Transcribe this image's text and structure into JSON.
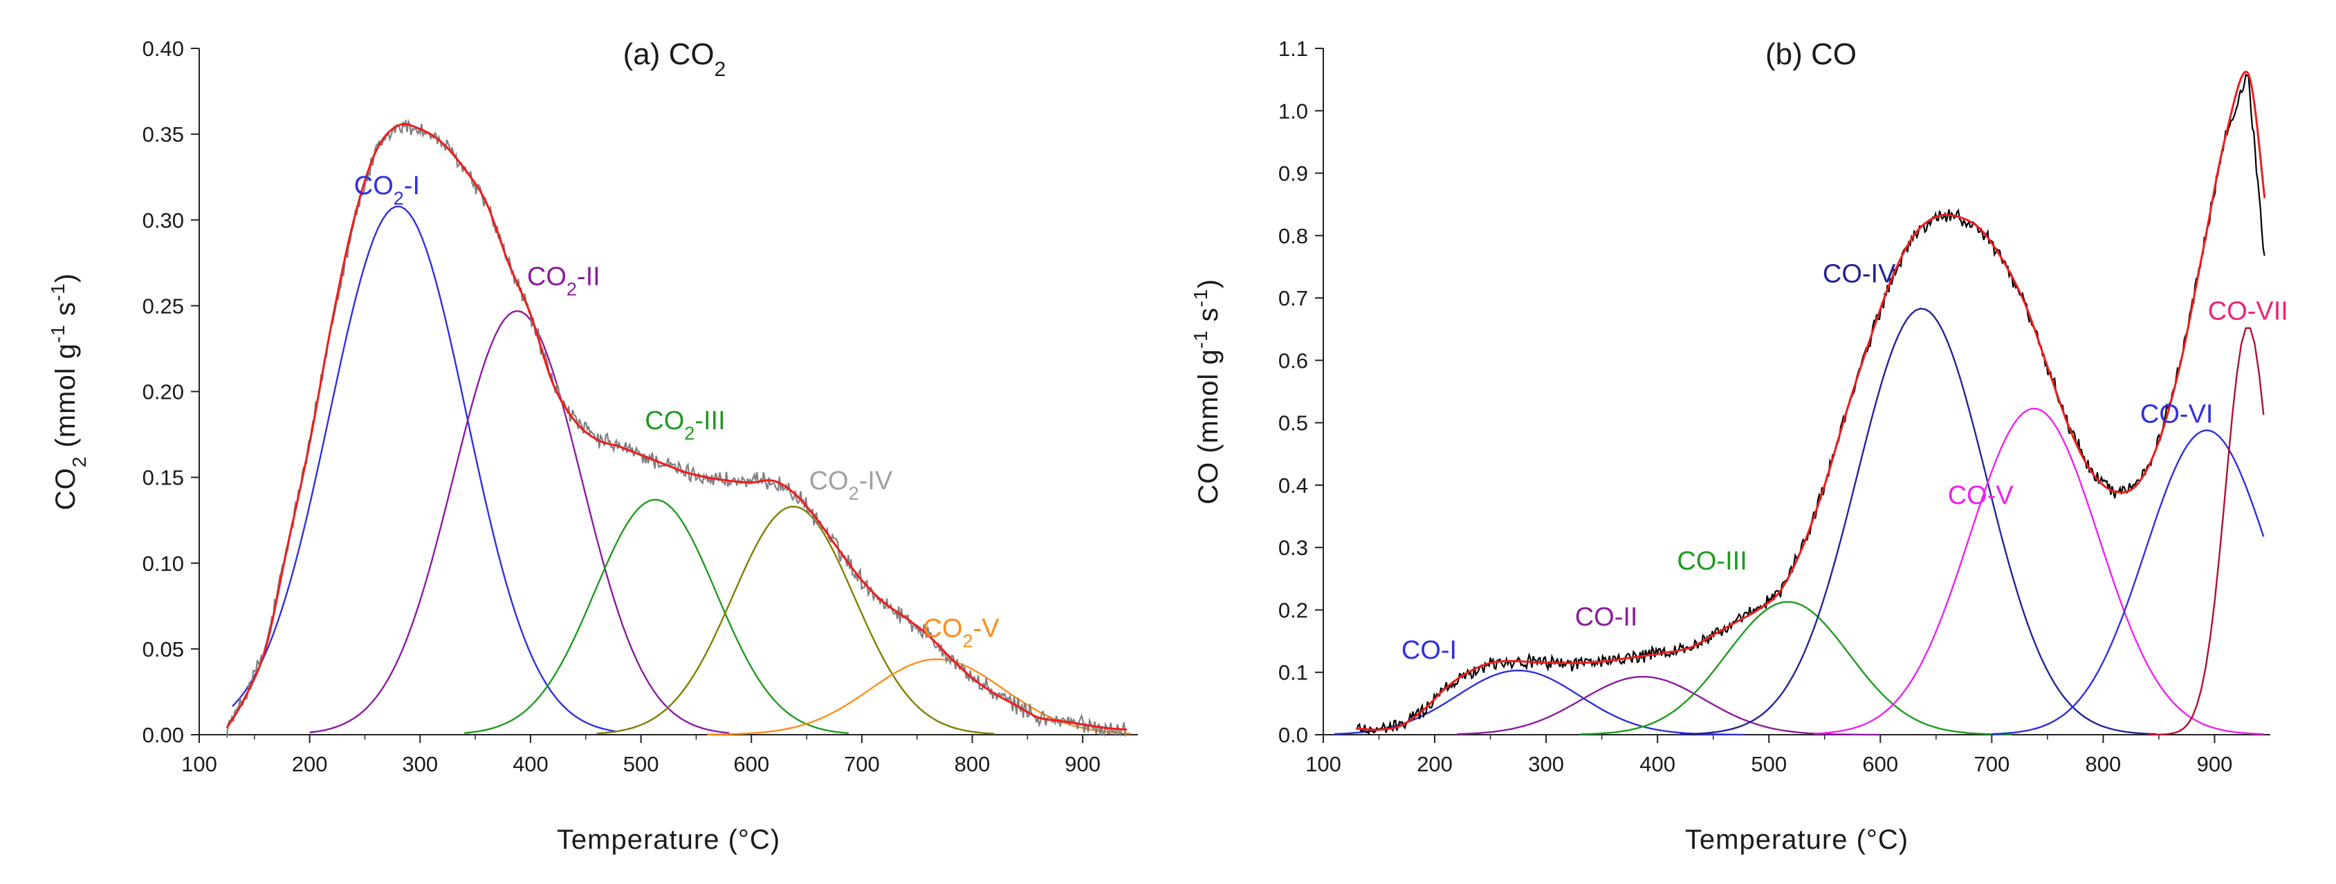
{
  "chart_data": [
    {
      "type": "line",
      "panel": "a",
      "title": "(a) CO",
      "title_sub": "2",
      "xlabel": "Temperature (°C)",
      "ylabel_parts": [
        {
          "t": "CO"
        },
        {
          "t": "2",
          "s": "sub"
        },
        {
          "t": " (mmol g"
        },
        {
          "t": "-1",
          "s": "sup"
        },
        {
          "t": " s"
        },
        {
          "t": "-1",
          "s": "sup"
        },
        {
          "t": ")"
        }
      ],
      "xlim": [
        100,
        950
      ],
      "ylim": [
        0,
        0.4
      ],
      "xticks": [
        100,
        200,
        300,
        400,
        500,
        600,
        700,
        800,
        900
      ],
      "yticks": [
        0.0,
        0.05,
        0.1,
        0.15,
        0.2,
        0.25,
        0.3,
        0.35,
        0.4
      ],
      "ytick_decimals": 2,
      "noise": 0.004,
      "experimental": {
        "name": "Experimental",
        "color": "#7f7f7f",
        "x": [
          125,
          140,
          160,
          180,
          200,
          220,
          240,
          260,
          280,
          300,
          320,
          340,
          360,
          380,
          400,
          420,
          440,
          460,
          480,
          500,
          520,
          540,
          560,
          580,
          600,
          620,
          640,
          660,
          680,
          700,
          720,
          740,
          760,
          780,
          800,
          820,
          840,
          860,
          880,
          900,
          920,
          940
        ],
        "y": [
          0.004,
          0.02,
          0.05,
          0.11,
          0.17,
          0.24,
          0.3,
          0.34,
          0.355,
          0.353,
          0.345,
          0.33,
          0.31,
          0.275,
          0.245,
          0.205,
          0.183,
          0.172,
          0.168,
          0.163,
          0.158,
          0.153,
          0.15,
          0.148,
          0.147,
          0.148,
          0.14,
          0.125,
          0.107,
          0.09,
          0.077,
          0.068,
          0.058,
          0.045,
          0.033,
          0.024,
          0.017,
          0.01,
          0.008,
          0.006,
          0.004,
          0.003
        ]
      },
      "fit": {
        "name": "Cumulative fit",
        "color": "#ee1c1c",
        "x": [
          125,
          140,
          160,
          180,
          200,
          220,
          240,
          260,
          280,
          300,
          320,
          340,
          360,
          380,
          400,
          420,
          440,
          460,
          480,
          500,
          520,
          540,
          560,
          580,
          600,
          620,
          640,
          660,
          680,
          700,
          720,
          740,
          760,
          780,
          800,
          820,
          840,
          860,
          880,
          900,
          920,
          940
        ],
        "y": [
          0.004,
          0.02,
          0.05,
          0.11,
          0.17,
          0.24,
          0.3,
          0.34,
          0.355,
          0.353,
          0.345,
          0.33,
          0.31,
          0.275,
          0.245,
          0.205,
          0.183,
          0.172,
          0.168,
          0.163,
          0.158,
          0.153,
          0.15,
          0.148,
          0.147,
          0.148,
          0.14,
          0.125,
          0.107,
          0.09,
          0.077,
          0.068,
          0.058,
          0.045,
          0.033,
          0.024,
          0.017,
          0.01,
          0.008,
          0.006,
          0.004,
          0.003
        ]
      },
      "peaks": [
        {
          "name": "CO2-I",
          "label": "CO",
          "sub": "2",
          "suffix": "-I",
          "color": "#2f2fe0",
          "center": 280,
          "height": 0.308,
          "sigma": 62,
          "x_from": 130,
          "x_to": 480,
          "label_x": 270,
          "label_y": 0.315
        },
        {
          "name": "CO2-II",
          "label": "CO",
          "sub": "2",
          "suffix": "-II",
          "color": "#8b1c9e",
          "center": 388,
          "height": 0.247,
          "sigma": 58,
          "x_from": 200,
          "x_to": 580,
          "label_x": 430,
          "label_y": 0.262
        },
        {
          "name": "CO2-III",
          "label": "CO",
          "sub": "2",
          "suffix": "-III",
          "color": "#1f9a1f",
          "center": 513,
          "height": 0.137,
          "sigma": 55,
          "x_from": 340,
          "x_to": 690,
          "label_x": 540,
          "label_y": 0.178
        },
        {
          "name": "CO2-IV",
          "label": "CO",
          "sub": "2",
          "suffix": "-IV",
          "color": "#7f7f00",
          "center": 638,
          "height": 0.133,
          "sigma": 55,
          "x_from": 460,
          "x_to": 820,
          "label_x": 690,
          "label_y": 0.143
        },
        {
          "name": "CO2-V",
          "label": "CO",
          "sub": "2",
          "suffix": "-V",
          "color": "#ff8c1a",
          "center": 768,
          "height": 0.044,
          "sigma": 60,
          "x_from": 560,
          "x_to": 945,
          "label_x": 790,
          "label_y": 0.057
        }
      ]
    },
    {
      "type": "line",
      "panel": "b",
      "title": "(b) CO",
      "title_sub": "",
      "xlabel": "Temperature (°C)",
      "ylabel_parts": [
        {
          "t": "CO (mmol g"
        },
        {
          "t": "-1",
          "s": "sup"
        },
        {
          "t": " s"
        },
        {
          "t": "-1",
          "s": "sup"
        },
        {
          "t": ")"
        }
      ],
      "xlim": [
        100,
        950
      ],
      "ylim": [
        0,
        1.1
      ],
      "xticks": [
        100,
        200,
        300,
        400,
        500,
        600,
        700,
        800,
        900
      ],
      "yticks": [
        0.0,
        0.1,
        0.2,
        0.3,
        0.4,
        0.5,
        0.6,
        0.7,
        0.8,
        0.9,
        1.0,
        1.1
      ],
      "ytick_decimals": 1,
      "noise": 0.009,
      "experimental": {
        "name": "Experimental",
        "color": "#000000",
        "x": [
          130,
          150,
          170,
          190,
          210,
          230,
          250,
          270,
          290,
          310,
          330,
          350,
          370,
          390,
          410,
          430,
          450,
          470,
          490,
          510,
          530,
          550,
          570,
          590,
          610,
          630,
          650,
          670,
          690,
          710,
          730,
          750,
          770,
          790,
          810,
          830,
          850,
          870,
          890,
          910,
          930,
          945
        ],
        "y": [
          0.01,
          0.008,
          0.015,
          0.04,
          0.075,
          0.1,
          0.115,
          0.118,
          0.116,
          0.115,
          0.115,
          0.117,
          0.122,
          0.127,
          0.132,
          0.14,
          0.16,
          0.18,
          0.2,
          0.23,
          0.3,
          0.4,
          0.52,
          0.63,
          0.73,
          0.8,
          0.83,
          0.83,
          0.81,
          0.76,
          0.69,
          0.59,
          0.49,
          0.42,
          0.39,
          0.4,
          0.47,
          0.6,
          0.78,
          0.96,
          1.06,
          0.76
        ]
      },
      "fit": {
        "name": "Cumulative fit",
        "color": "#ee1c1c",
        "x": [
          130,
          150,
          170,
          190,
          210,
          230,
          250,
          270,
          290,
          310,
          330,
          350,
          370,
          390,
          410,
          430,
          450,
          470,
          490,
          510,
          530,
          550,
          570,
          590,
          610,
          630,
          650,
          670,
          690,
          710,
          730,
          750,
          770,
          790,
          810,
          830,
          850,
          870,
          890,
          910,
          930,
          945
        ],
        "y": [
          0.01,
          0.008,
          0.015,
          0.04,
          0.075,
          0.1,
          0.115,
          0.118,
          0.116,
          0.115,
          0.115,
          0.117,
          0.122,
          0.127,
          0.132,
          0.14,
          0.16,
          0.18,
          0.2,
          0.23,
          0.3,
          0.4,
          0.52,
          0.63,
          0.73,
          0.8,
          0.83,
          0.83,
          0.81,
          0.76,
          0.69,
          0.59,
          0.49,
          0.42,
          0.39,
          0.4,
          0.47,
          0.6,
          0.78,
          0.96,
          1.06,
          0.86
        ]
      },
      "peaks": [
        {
          "name": "CO-I",
          "label": "CO-I",
          "sub": "",
          "suffix": "",
          "color": "#2f2fe0",
          "center": 275,
          "height": 0.103,
          "sigma": 55,
          "x_from": 110,
          "x_to": 480,
          "label_x": 195,
          "label_y": 0.122
        },
        {
          "name": "CO-II",
          "label": "CO-II",
          "sub": "",
          "suffix": "",
          "color": "#8b1c9e",
          "center": 387,
          "height": 0.093,
          "sigma": 55,
          "x_from": 220,
          "x_to": 600,
          "label_x": 354,
          "label_y": 0.175
        },
        {
          "name": "CO-III",
          "label": "CO-III",
          "sub": "",
          "suffix": "",
          "color": "#1f9a1f",
          "center": 517,
          "height": 0.213,
          "sigma": 55,
          "x_from": 330,
          "x_to": 720,
          "label_x": 449,
          "label_y": 0.265
        },
        {
          "name": "CO-IV",
          "label": "CO-IV",
          "sub": "",
          "suffix": "",
          "color": "#23239a",
          "center": 637,
          "height": 0.683,
          "sigma": 58,
          "x_from": 420,
          "x_to": 850,
          "label_x": 581,
          "label_y": 0.725
        },
        {
          "name": "CO-V",
          "label": "CO-V",
          "sub": "",
          "suffix": "",
          "color": "#ee22ee",
          "center": 738,
          "height": 0.523,
          "sigma": 58,
          "x_from": 540,
          "x_to": 945,
          "label_x": 690,
          "label_y": 0.37
        },
        {
          "name": "CO-VI",
          "label": "CO-VI",
          "sub": "",
          "suffix": "",
          "color": "#2f2fe0",
          "center": 893,
          "height": 0.488,
          "sigma": 55,
          "x_from": 700,
          "x_to": 945,
          "label_x": 866,
          "label_y": 0.5
        },
        {
          "name": "CO-VII",
          "label": "CO-VII",
          "sub": "",
          "suffix": "",
          "color": "#b01030",
          "center": 930,
          "height": 0.655,
          "sigma": 20,
          "x_from": 840,
          "x_to": 945,
          "label_x": 930,
          "label_y": 0.665
        }
      ]
    }
  ],
  "peak_label_colors": {
    "CO2-I": "#2f2fe0",
    "CO2-II": "#8b1c9e",
    "CO2-III": "#1f9a1f",
    "CO2-IV": "#a0a0a0",
    "CO2-V": "#ff8c1a",
    "CO-I": "#2f2fe0",
    "CO-II": "#8b1c9e",
    "CO-III": "#1f9a1f",
    "CO-IV": "#23239a",
    "CO-V": "#ee22ee",
    "CO-VI": "#2f2fe0",
    "CO-VII": "#ee2277"
  }
}
